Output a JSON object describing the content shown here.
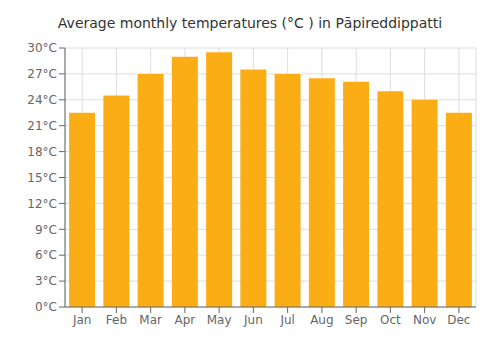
{
  "chart_data": {
    "type": "bar",
    "title": "Average monthly temperatures (°C ) in Pāpireddippatti",
    "categories": [
      "Jan",
      "Feb",
      "Mar",
      "Apr",
      "May",
      "Jun",
      "Jul",
      "Aug",
      "Sep",
      "Oct",
      "Nov",
      "Dec"
    ],
    "values": [
      22.5,
      24.5,
      27.0,
      29.0,
      29.5,
      27.5,
      27.0,
      26.5,
      26.1,
      25.0,
      24.0,
      22.5
    ],
    "color": "#FBAD16",
    "ylim": [
      0,
      30
    ],
    "yticks": [
      {
        "value": 0,
        "label": "0°C"
      },
      {
        "value": 3,
        "label": "3°C"
      },
      {
        "value": 6,
        "label": "6°C"
      },
      {
        "value": 9,
        "label": "9°C"
      },
      {
        "value": 12,
        "label": "12°C"
      },
      {
        "value": 15,
        "label": "15°C"
      },
      {
        "value": 18,
        "label": "18°C"
      },
      {
        "value": 21,
        "label": "21°C"
      },
      {
        "value": 24,
        "label": "24°C"
      },
      {
        "value": 27,
        "label": "27°C"
      },
      {
        "value": 30,
        "label": "30°C"
      }
    ],
    "grid": true
  }
}
